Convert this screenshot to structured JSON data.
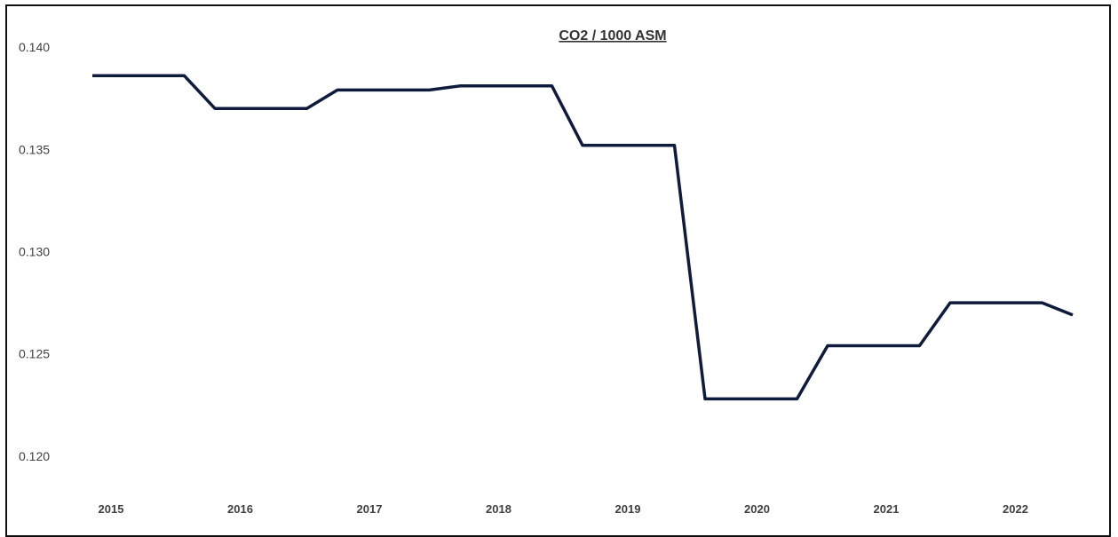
{
  "colors": {
    "series": "#0f1b3d",
    "frame": "#111111",
    "text": "#404040"
  },
  "chart_data": {
    "type": "line",
    "title": "CO2 / 1000 ASM",
    "xlabel": "",
    "ylabel": "",
    "grid": false,
    "legend": "none",
    "ylim": [
      0.118,
      0.141
    ],
    "y_ticks": [
      "0.120",
      "0.125",
      "0.130",
      "0.135",
      "0.140"
    ],
    "x_ticks": [
      "2015",
      "2016",
      "2017",
      "2018",
      "2019",
      "2020",
      "2021",
      "2022"
    ],
    "series": [
      {
        "x": [
          "2015",
          "2015 Q2",
          "2015 Q3",
          "2015 Q4",
          "2016",
          "2016 Q2",
          "2016 Q3",
          "2016 Q4",
          "2017",
          "2017 Q2",
          "2017 Q3",
          "2017 Q4",
          "2018",
          "2018 Q2",
          "2018 Q3",
          "2018 Q4",
          "2019",
          "2019 Q2",
          "2019 Q3",
          "2019 Q4",
          "2020",
          "2020 Q2",
          "2020 Q3",
          "2020 Q4",
          "2021",
          "2021 Q2",
          "2021 Q3",
          "2021 Q4",
          "2022",
          "2022 Q2",
          "2022 Q3",
          "2022 Q4",
          "2022 Q5"
        ],
        "values": [
          0.1386,
          0.1386,
          0.1386,
          0.1386,
          0.137,
          0.137,
          0.137,
          0.137,
          0.1379,
          0.1379,
          0.1379,
          0.1379,
          0.1381,
          0.1381,
          0.1381,
          0.1381,
          0.1352,
          0.1352,
          0.1352,
          0.1352,
          0.1228,
          0.1228,
          0.1228,
          0.1228,
          0.1254,
          0.1254,
          0.1254,
          0.1254,
          0.1275,
          0.1275,
          0.1275,
          0.1275,
          0.1269
        ]
      }
    ]
  }
}
